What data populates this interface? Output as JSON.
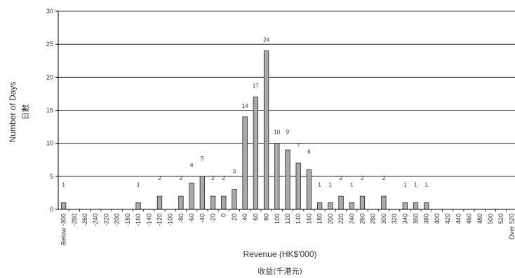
{
  "chart_data": {
    "type": "bar",
    "categories": [
      "Below -300",
      "-280",
      "-260",
      "-240",
      "-220",
      "-200",
      "-180",
      "-160",
      "-140",
      "-120",
      "-100",
      "-80",
      "-60",
      "-40",
      "-20",
      "0",
      "20",
      "40",
      "60",
      "80",
      "100",
      "120",
      "140",
      "160",
      "180",
      "200",
      "220",
      "240",
      "260",
      "280",
      "300",
      "320",
      "340",
      "360",
      "380",
      "400",
      "420",
      "440",
      "460",
      "480",
      "500",
      "520",
      "Over 520"
    ],
    "values": [
      1,
      0,
      0,
      0,
      0,
      0,
      0,
      1,
      0,
      2,
      0,
      2,
      4,
      5,
      2,
      2,
      3,
      14,
      17,
      24,
      10,
      9,
      7,
      6,
      1,
      1,
      2,
      1,
      2,
      0,
      2,
      0,
      1,
      1,
      1,
      0,
      0,
      0,
      0,
      0,
      0,
      0,
      0
    ],
    "data_labels": [
      "1",
      "",
      "",
      "",
      "",
      "",
      "",
      "1",
      "",
      "2",
      "",
      "2",
      "4",
      "5",
      "2",
      "2",
      "3",
      "14",
      "17",
      "24",
      "10",
      "9",
      "7",
      "6",
      "1",
      "1",
      "2",
      "1",
      "2",
      "",
      "2",
      "",
      "1",
      "1",
      "1",
      "",
      "",
      "",
      "",
      "",
      "",
      "",
      ""
    ],
    "ylim": [
      0,
      30
    ],
    "yticks": [
      0,
      5,
      10,
      15,
      20,
      25,
      30
    ],
    "ylabel": "Number of Days",
    "ylabel_secondary": "日數",
    "xlabel": "Revenue (HK$'000)",
    "xlabel_secondary": "收益(千港元)",
    "grid": "horizontal",
    "colors": {
      "bar_fill": "#aaaaaa",
      "bar_stroke": "#222222",
      "gridline": "#000000"
    }
  }
}
